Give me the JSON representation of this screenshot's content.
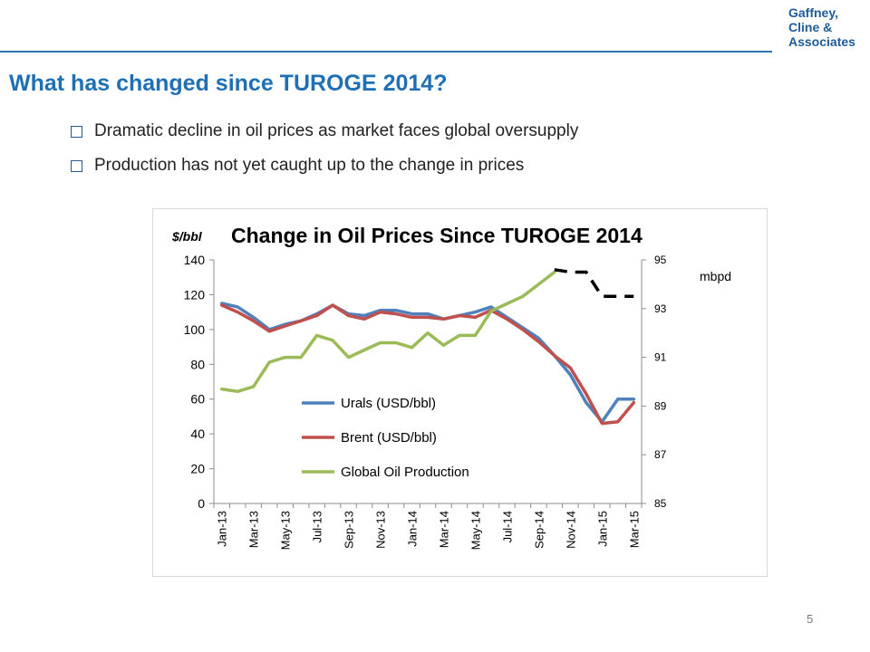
{
  "logo": {
    "line1": "Gaffney,",
    "line2": "Cline &",
    "line3": "Associates"
  },
  "title": "What has changed since TUROGE 2014?",
  "bullets": [
    "Dramatic decline in oil prices as market faces global oversupply",
    "Production has not yet caught up to the change in prices"
  ],
  "page_number": "5",
  "chart_data": {
    "type": "line",
    "title": "Change in Oil Prices Since TUROGE 2014",
    "ylabel": "$/bbl",
    "y2label": "mbpd",
    "ylim": [
      0,
      140
    ],
    "y2lim": [
      85,
      95
    ],
    "yticks": [
      "0",
      "20",
      "40",
      "60",
      "80",
      "100",
      "120",
      "140"
    ],
    "y2ticks": [
      "85",
      "87",
      "89",
      "91",
      "93",
      "95"
    ],
    "categories": [
      "Jan-13",
      "Feb-13",
      "Mar-13",
      "Apr-13",
      "May-13",
      "Jun-13",
      "Jul-13",
      "Aug-13",
      "Sep-13",
      "Oct-13",
      "Nov-13",
      "Dec-13",
      "Jan-14",
      "Feb-14",
      "Mar-14",
      "Apr-14",
      "May-14",
      "Jun-14",
      "Jul-14",
      "Aug-14",
      "Sep-14",
      "Oct-14",
      "Nov-14",
      "Dec-14",
      "Jan-15",
      "Feb-15",
      "Mar-15"
    ],
    "xtick_labels": [
      "Jan-13",
      "Mar-13",
      "May-13",
      "Jul-13",
      "Sep-13",
      "Nov-13",
      "Jan-14",
      "Mar-14",
      "May-14",
      "Jul-14",
      "Sep-14",
      "Nov-14",
      "Jan-15",
      "Mar-15"
    ],
    "legend_position": "lower-left",
    "grid": false,
    "series": [
      {
        "name": "Urals (USD/bbl)",
        "axis": "left",
        "color": "#4f81bd",
        "values": [
          115,
          113,
          107,
          100,
          103,
          105,
          109,
          114,
          109,
          108,
          111,
          111,
          109,
          109,
          106,
          108,
          110,
          113,
          107,
          101,
          95,
          85,
          74,
          58,
          47,
          60,
          60
        ]
      },
      {
        "name": "Brent (USD/bbl)",
        "axis": "left",
        "color": "#c0504d",
        "values": [
          114,
          110,
          105,
          99,
          102,
          105,
          108,
          114,
          108,
          106,
          110,
          109,
          107,
          107,
          106,
          108,
          107,
          111,
          106,
          100,
          93,
          85,
          78,
          63,
          46,
          47,
          58
        ]
      },
      {
        "name": "Global Oil Production",
        "axis": "right",
        "color": "#9bbb59",
        "values": [
          89.7,
          89.6,
          89.8,
          90.8,
          91.0,
          91.0,
          91.9,
          91.7,
          91.0,
          91.3,
          91.6,
          91.6,
          91.4,
          92.0,
          91.5,
          91.9,
          91.9,
          92.9,
          93.2,
          93.5,
          94.0,
          94.5,
          null,
          null,
          null,
          null,
          null
        ]
      }
    ],
    "dashed_segment": {
      "axis": "right",
      "color": "#000000",
      "x": [
        "Oct-14",
        "Nov-14",
        "Dec-14",
        "Jan-15",
        "Feb-15",
        "Mar-15"
      ],
      "values": [
        94.6,
        94.5,
        94.5,
        93.5,
        93.5,
        93.5
      ]
    }
  }
}
